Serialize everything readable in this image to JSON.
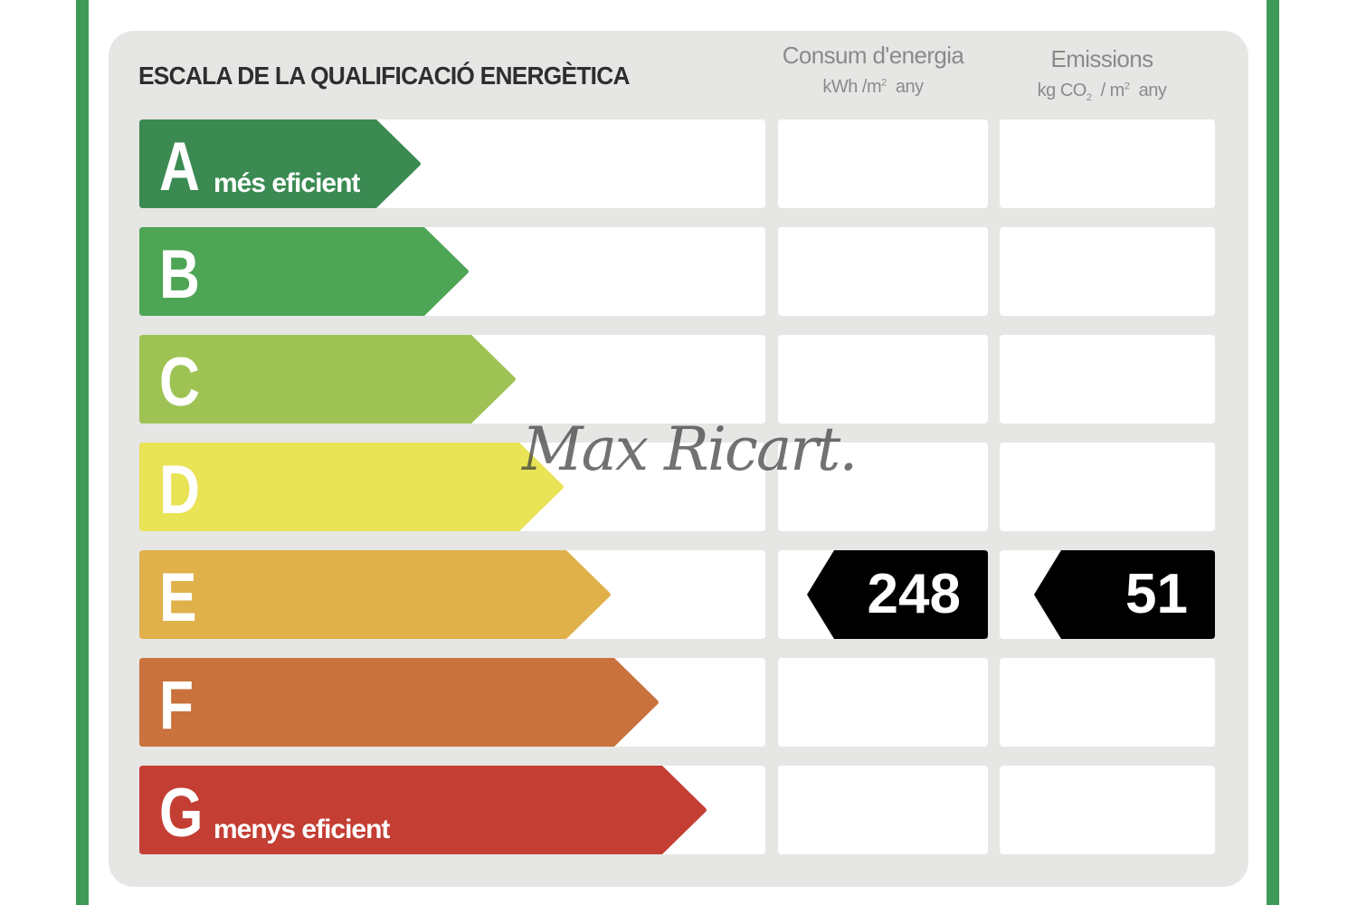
{
  "title": "ESCALA DE LA QUALIFICACIÓ ENERGÈTICA",
  "columns": {
    "energy": {
      "label": "Consum d'energia",
      "unit_prefix": "kWh /m",
      "unit_sup": "2",
      "unit_suffix": "any"
    },
    "emissions": {
      "label": "Emissions",
      "unit_prefix": "kg CO",
      "unit_sub": "2",
      "unit_mid": " / m",
      "unit_sup": "2",
      "unit_suffix": "any"
    }
  },
  "ratings": [
    {
      "letter": "A",
      "sublabel": "més eficient",
      "color": "#3a8a52"
    },
    {
      "letter": "B",
      "sublabel": "",
      "color": "#4ea555"
    },
    {
      "letter": "C",
      "sublabel": "",
      "color": "#9ec354"
    },
    {
      "letter": "D",
      "sublabel": "",
      "color": "#e9e356"
    },
    {
      "letter": "E",
      "sublabel": "",
      "color": "#e0b04b"
    },
    {
      "letter": "F",
      "sublabel": "",
      "color": "#c9723d"
    },
    {
      "letter": "G",
      "sublabel": "menys eficient",
      "color": "#c43e34"
    }
  ],
  "result": {
    "energy_rating": "E",
    "energy_value": "248",
    "emissions_rating": "E",
    "emissions_value": "51",
    "marker_color": "#000000"
  },
  "watermark": "Max Ricart.",
  "frame_color": "#3e9a56"
}
